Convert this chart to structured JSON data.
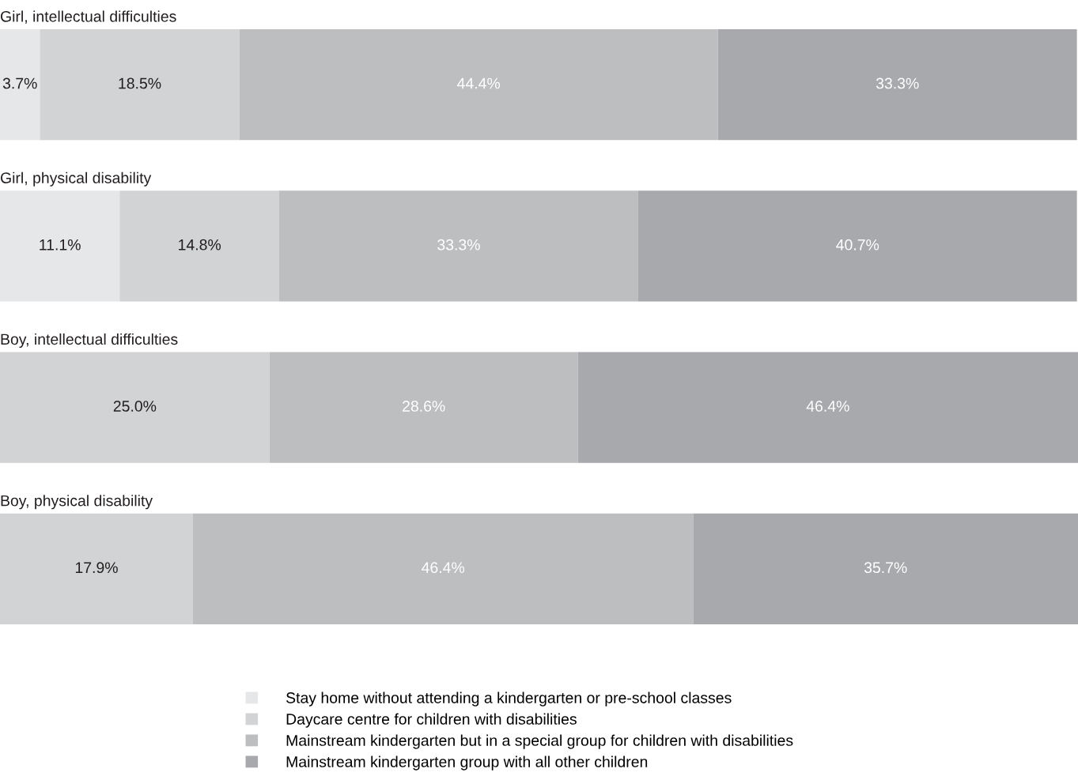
{
  "chart_data": {
    "type": "bar",
    "orientation": "horizontal",
    "stacked": true,
    "categories": [
      "Girl, intellectual difficulties",
      "Girl, physical disability",
      "Boy, intellectual difficulties",
      "Boy, physical disability"
    ],
    "series": [
      {
        "name": "Stay home without attending a kindergarten or pre-school classes",
        "color": "#e6e7e8",
        "values": [
          3.7,
          11.1,
          null,
          null
        ],
        "value_labels": [
          "3.7%",
          "11.1%",
          null,
          null
        ]
      },
      {
        "name": "Daycare centre for children with disabilities",
        "color": "#d1d3d4",
        "values": [
          18.5,
          14.8,
          25.0,
          17.9
        ],
        "value_labels": [
          "18.5%",
          "14.8%",
          "25.0%",
          "17.9%"
        ]
      },
      {
        "name": "Mainstream kindergarten but in a special group for children with disabilities",
        "color": "#bcbec0",
        "values": [
          44.4,
          33.3,
          28.6,
          46.4
        ],
        "value_labels": [
          "44.4%",
          "33.3%",
          "28.6%",
          "46.4%"
        ]
      },
      {
        "name": "Mainstream kindergarten group with all other children",
        "color": "#a7a9ac",
        "values": [
          33.3,
          40.7,
          46.4,
          35.7
        ],
        "value_labels": [
          "33.3%",
          "40.7%",
          "46.4%",
          "35.7%"
        ]
      }
    ],
    "tick_labels": false,
    "legend": "bottom"
  }
}
